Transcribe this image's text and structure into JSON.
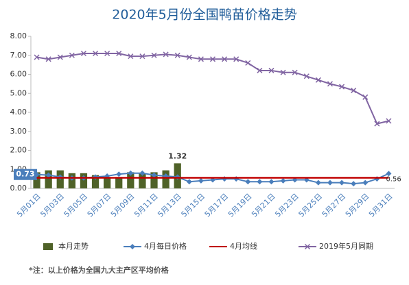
{
  "chart_data": {
    "type": "combo",
    "title": "2020年5月份全国鸭苗价格走势",
    "footnote": "*注：以上价格为全国九大主产区平均价格",
    "categories": [
      "5月01日",
      null,
      "5月03日",
      null,
      "5月05日",
      null,
      "5月07日",
      null,
      "5月09日",
      null,
      "5月11日",
      null,
      "5月13日",
      null,
      "5月15日",
      null,
      "5月17日",
      null,
      "5月19日",
      null,
      "5月21日",
      null,
      "5月23日",
      null,
      "5月25日",
      null,
      "5月27日",
      null,
      "5月29日",
      null,
      "5月31日"
    ],
    "ylim": [
      0,
      8
    ],
    "yticks": [
      {
        "value": 0,
        "label": "0.00"
      },
      {
        "value": 1,
        "label": "1.00"
      },
      {
        "value": 2,
        "label": "2.00"
      },
      {
        "value": 3,
        "label": "3.00"
      },
      {
        "value": 4,
        "label": "4.00"
      },
      {
        "value": 5,
        "label": "5.00"
      },
      {
        "value": 6,
        "label": "6.00"
      },
      {
        "value": 7,
        "label": "7.00"
      },
      {
        "value": 8,
        "label": "8.00"
      }
    ],
    "grid": false,
    "series": [
      {
        "name": "本月走势",
        "kind": "bar",
        "color": "#4f6228",
        "values": [
          0.85,
          0.95,
          0.95,
          0.8,
          0.8,
          0.7,
          0.6,
          0.6,
          0.85,
          0.8,
          0.85,
          0.95,
          1.32,
          null,
          null,
          null,
          null,
          null,
          null,
          null,
          null,
          null,
          null,
          null,
          null,
          null,
          null,
          null,
          null,
          null,
          null
        ],
        "value_labels": [
          null,
          null,
          null,
          null,
          null,
          null,
          null,
          null,
          null,
          null,
          null,
          null,
          "1.32",
          null,
          null,
          null,
          null,
          null,
          null,
          null,
          null,
          null,
          null,
          null,
          null,
          null,
          null,
          null,
          null,
          null,
          null
        ]
      },
      {
        "name": "4月每日价格",
        "kind": "line",
        "marker": "diamond",
        "color": "#4a7ebb",
        "values": [
          0.73,
          0.7,
          0.6,
          0.55,
          0.55,
          0.6,
          0.65,
          0.75,
          0.8,
          0.8,
          0.7,
          0.65,
          0.6,
          0.35,
          0.4,
          0.45,
          0.5,
          0.5,
          0.35,
          0.35,
          0.35,
          0.4,
          0.45,
          0.45,
          0.3,
          0.3,
          0.3,
          0.25,
          0.3,
          0.5,
          0.78
        ],
        "value_labels": [
          "0.73",
          null,
          null,
          null,
          null,
          null,
          null,
          null,
          null,
          null,
          null,
          null,
          null,
          null,
          null,
          null,
          null,
          null,
          null,
          null,
          null,
          null,
          null,
          null,
          null,
          null,
          null,
          null,
          null,
          null,
          null
        ]
      },
      {
        "name": "4月均线",
        "kind": "line",
        "marker": "none",
        "color": "#c00000",
        "values": [
          0.56,
          0.56,
          0.56,
          0.56,
          0.56,
          0.56,
          0.56,
          0.56,
          0.56,
          0.56,
          0.56,
          0.56,
          0.56,
          0.56,
          0.56,
          0.56,
          0.56,
          0.56,
          0.56,
          0.56,
          0.56,
          0.56,
          0.56,
          0.56,
          0.56,
          0.56,
          0.56,
          0.56,
          0.56,
          0.56,
          0.56
        ],
        "value_labels": [
          null,
          null,
          null,
          null,
          null,
          null,
          null,
          null,
          null,
          null,
          null,
          null,
          null,
          null,
          null,
          null,
          null,
          null,
          null,
          null,
          null,
          null,
          null,
          null,
          null,
          null,
          null,
          null,
          null,
          null,
          "0.56"
        ]
      },
      {
        "name": "2019年5月同期",
        "kind": "line",
        "marker": "x",
        "color": "#8064a2",
        "values": [
          6.9,
          6.8,
          6.9,
          7.0,
          7.1,
          7.1,
          7.1,
          7.1,
          6.95,
          6.95,
          7.0,
          7.05,
          7.0,
          6.9,
          6.8,
          6.8,
          6.8,
          6.8,
          6.6,
          6.2,
          6.2,
          6.1,
          6.1,
          5.9,
          5.7,
          5.5,
          5.35,
          5.15,
          4.8,
          3.4,
          3.55
        ]
      }
    ]
  }
}
